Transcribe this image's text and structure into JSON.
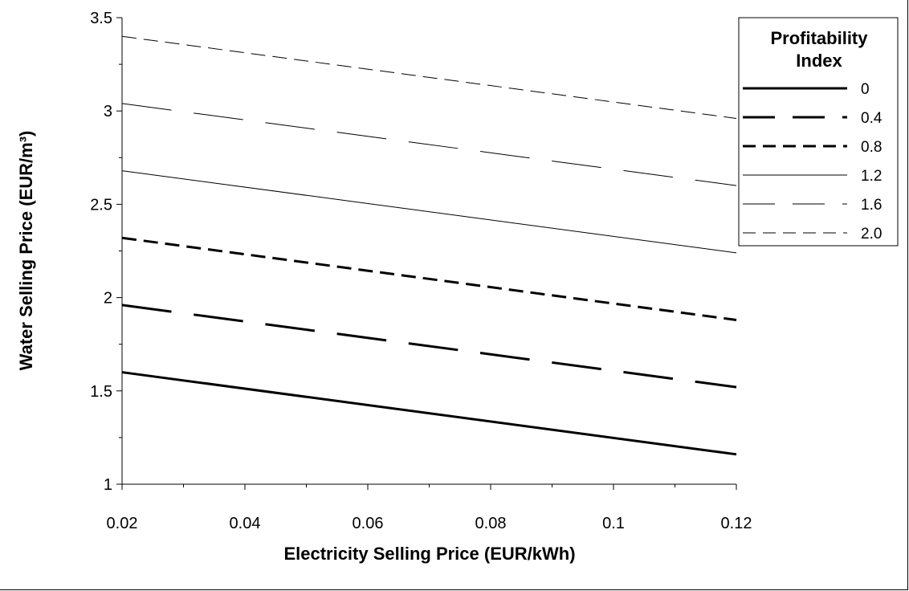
{
  "chart_data": {
    "type": "line",
    "title": "",
    "xlabel": "Electricity Selling Price (EUR/kWh)",
    "ylabel": "Water Selling Price (EUR/m³)",
    "xlim": [
      0.02,
      0.12
    ],
    "ylim": [
      1,
      3.5
    ],
    "xticks": [
      "0.02",
      "0.04",
      "0.06",
      "0.08",
      "0.1",
      "0.12"
    ],
    "yticks": [
      "1",
      "1.5",
      "2",
      "2.5",
      "3",
      "3.5"
    ],
    "grid": false,
    "legend": {
      "title": "Profitability Index",
      "title_lines": [
        "Profitability",
        "Index"
      ],
      "placement": "top-right"
    },
    "x": [
      0.02,
      0.12
    ],
    "series": [
      {
        "name": "0",
        "style": "solid-thick",
        "values": [
          1.6,
          1.16
        ]
      },
      {
        "name": "0.4",
        "style": "long-dash-thick",
        "values": [
          1.96,
          1.52
        ]
      },
      {
        "name": "0.8",
        "style": "dash-thick",
        "values": [
          2.32,
          1.88
        ]
      },
      {
        "name": "1.2",
        "style": "solid-thin",
        "values": [
          2.68,
          2.24
        ]
      },
      {
        "name": "1.6",
        "style": "long-dash-thin",
        "values": [
          3.04,
          2.6
        ]
      },
      {
        "name": "2.0",
        "style": "dash-thin",
        "values": [
          3.4,
          2.96
        ]
      }
    ]
  }
}
